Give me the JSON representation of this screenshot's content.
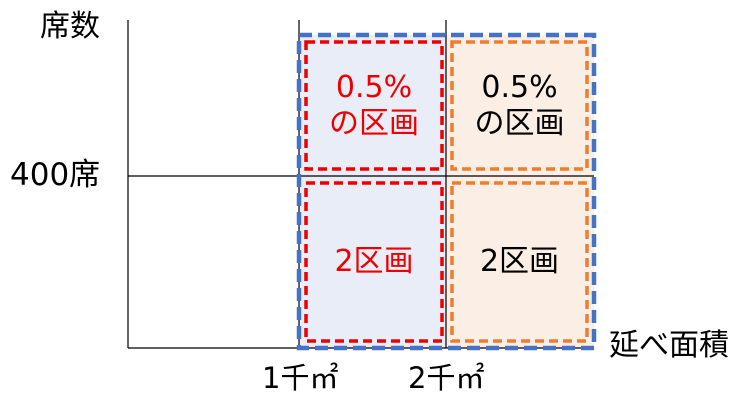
{
  "axes": {
    "y_label": "席数",
    "x_label": "延べ面積",
    "y_tick": "400席",
    "x_ticks": [
      "1千㎡",
      "2千㎡"
    ]
  },
  "cells": [
    {
      "line1": "0.5%",
      "line2": "の区画",
      "color": "#ee0000"
    },
    {
      "line1": "0.5%",
      "line2": "の区画",
      "color": "#000000"
    },
    {
      "line1": "2区画",
      "line2": "",
      "color": "#ee0000"
    },
    {
      "line1": "2区画",
      "line2": "",
      "color": "#000000"
    }
  ],
  "colors": {
    "outer_border": "#4472c4",
    "left_border": "#ee0000",
    "right_border": "#ed7d31",
    "left_fill": "#e8edf7",
    "right_fill": "#fbeee5",
    "axis": "#000000"
  }
}
